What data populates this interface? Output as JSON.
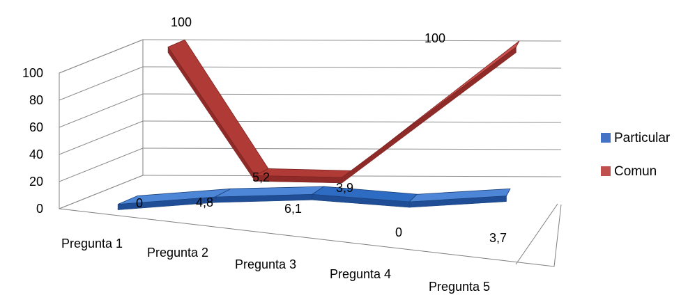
{
  "chart_data": {
    "type": "line",
    "style": "3d-ribbon",
    "categories": [
      "Pregunta 1",
      "Pregunta 2",
      "Pregunta 3",
      "Pregunta 4",
      "Pregunta 5"
    ],
    "series": [
      {
        "name": "Particular",
        "values": [
          0,
          4.8,
          6.1,
          0,
          3.7
        ],
        "labels": [
          "0",
          "4,8",
          "6,1",
          "0",
          "3,7"
        ],
        "color": "#4472C4"
      },
      {
        "name": "Comun",
        "values": [
          100,
          5.2,
          3.9,
          null,
          100
        ],
        "labels": [
          "100",
          "5,2",
          "3,9",
          "",
          "100"
        ],
        "color": "#C0504D"
      }
    ],
    "y_ticks": [
      "0",
      "20",
      "40",
      "60",
      "80",
      "100"
    ],
    "ylim": [
      0,
      100
    ],
    "grid": true,
    "legend": "right",
    "title": "",
    "xlabel": "",
    "ylabel": ""
  }
}
